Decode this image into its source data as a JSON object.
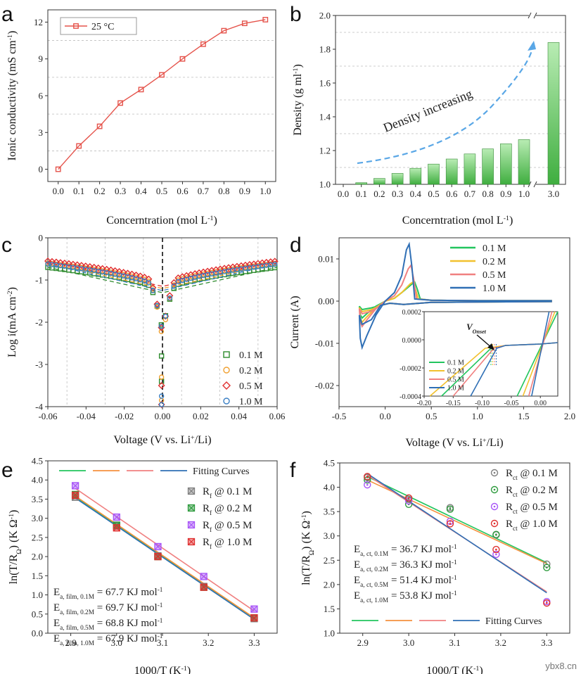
{
  "figure": {
    "panel_letters": [
      "a",
      "b",
      "c",
      "d",
      "e",
      "f"
    ],
    "watermark": "ybx8.cn"
  },
  "chart_data": [
    {
      "id": "a",
      "type": "line",
      "xlabel": "Concerntration (mol L",
      "xlabel_sup": "-1",
      "xlabel_close": ")",
      "ylabel": "Ionic conductivity (mS cm",
      "ylabel_sup": "-1",
      "ylabel_close": ")",
      "x": [
        0.0,
        0.1,
        0.2,
        0.3,
        0.4,
        0.5,
        0.6,
        0.7,
        0.8,
        0.9,
        1.0
      ],
      "series": [
        {
          "name": "25 °C",
          "values": [
            0.0,
            1.9,
            3.5,
            5.4,
            6.5,
            7.7,
            9.0,
            10.2,
            11.3,
            11.9,
            12.2
          ],
          "color": "#e5534b"
        }
      ],
      "xticks": [
        "0.0",
        "0.1",
        "0.2",
        "0.3",
        "0.4",
        "0.5",
        "0.6",
        "0.7",
        "0.8",
        "0.9",
        "1.0"
      ],
      "yticks": [
        "0",
        "3",
        "6",
        "9",
        "12"
      ],
      "xlim": [
        -0.05,
        1.05
      ],
      "ylim": [
        -1,
        13
      ],
      "legend": "top-left",
      "grid": true
    },
    {
      "id": "b",
      "type": "bar",
      "xlabel": "Concerntration (mol L",
      "xlabel_sup": "-1",
      "xlabel_close": ")",
      "ylabel": "Density (g ml",
      "ylabel_sup": "-1",
      "ylabel_close": ")",
      "categories": [
        "0.1",
        "0.2",
        "0.3",
        "0.4",
        "0.5",
        "0.6",
        "0.7",
        "0.8",
        "0.9",
        "1.0",
        "3.0"
      ],
      "values": [
        1.01,
        1.035,
        1.065,
        1.095,
        1.12,
        1.15,
        1.18,
        1.21,
        1.24,
        1.265,
        1.84
      ],
      "xticks": [
        "0.0",
        "0.1",
        "0.2",
        "0.3",
        "0.4",
        "0.5",
        "0.6",
        "0.7",
        "0.8",
        "0.9",
        "1.0",
        "3.0"
      ],
      "yticks": [
        "1.0",
        "1.2",
        "1.4",
        "1.6",
        "1.8",
        "2.0"
      ],
      "ylim": [
        1.0,
        2.0
      ],
      "annotation": "Density increasing",
      "bar_color_top": "#b9ecb4",
      "bar_color_bottom": "#3fae3f",
      "grid": true
    },
    {
      "id": "c",
      "type": "scatter",
      "xlabel": "Voltage (V vs. Li",
      "xlabel_sup": "+",
      "xlabel_close": "/Li)",
      "ylabel": "Log i(mA cm",
      "ylabel_sup": "-2",
      "ylabel_close": ")",
      "xticks": [
        "-0.06",
        "-0.04",
        "-0.02",
        "0.00",
        "0.02",
        "0.04",
        "0.06"
      ],
      "yticks": [
        "-4",
        "-3",
        "-2",
        "-1",
        "0"
      ],
      "xlim": [
        -0.06,
        0.06
      ],
      "ylim": [
        -4,
        0
      ],
      "series": [
        {
          "name": "0.1 M",
          "color": "#2e8b2e",
          "marker": "square",
          "a": -0.7,
          "b": -1.3,
          "k": -2.2
        },
        {
          "name": "0.2 M",
          "color": "#f0a030",
          "marker": "circle",
          "a": -0.6,
          "b": -1.2,
          "k": -2.4
        },
        {
          "name": "0.5 M",
          "color": "#e03030",
          "marker": "diamond",
          "a": -0.55,
          "b": -1.15,
          "k": -2.3
        },
        {
          "name": "1.0 M",
          "color": "#3a7fc4",
          "marker": "circle",
          "a": -0.62,
          "b": -1.25,
          "k": -2.25
        }
      ],
      "legend": "bottom-right",
      "grid": true
    },
    {
      "id": "d",
      "type": "line",
      "xlabel": "Voltage (V vs. Li",
      "xlabel_sup": "+",
      "xlabel_close": "/Li)",
      "ylabel": "Current (A)",
      "xticks": [
        "-0.5",
        "0.0",
        "0.5",
        "1.0",
        "1.5",
        "2.0"
      ],
      "yticks": [
        "-0.02",
        "-0.01",
        "0.00",
        "0.01"
      ],
      "xlim": [
        -0.5,
        2.0
      ],
      "ylim": [
        -0.025,
        0.015
      ],
      "series": [
        {
          "name": "0.1 M",
          "color": "#22c55e",
          "peak": 0.0045,
          "peakx": 0.32,
          "min": -0.004
        },
        {
          "name": "0.2 M",
          "color": "#f2c12e",
          "peak": 0.0045,
          "peakx": 0.3,
          "min": -0.005
        },
        {
          "name": "0.5 M",
          "color": "#f08080",
          "peak": 0.0085,
          "peakx": 0.28,
          "min": -0.006
        },
        {
          "name": "1.0 M",
          "color": "#2f6fb5",
          "peak": 0.0135,
          "peakx": 0.26,
          "min": -0.011
        }
      ],
      "inset": {
        "xticks": [
          "-0.20",
          "-0.15",
          "-0.10",
          "-0.05",
          "0.00"
        ],
        "yticks": [
          "0.0002",
          "0.0000",
          "-0.0002",
          "-0.0004"
        ],
        "xlim": [
          -0.2,
          0.03
        ],
        "ylim": [
          -0.0004,
          0.0002
        ],
        "label": "V",
        "label_sub": "Onset",
        "legend": [
          "0.1 M",
          "0.2 M",
          "0.5 M",
          "1.0 M"
        ]
      },
      "legend": "top-right"
    },
    {
      "id": "e",
      "type": "scatter",
      "xlabel": "1000/T (K",
      "xlabel_sup": "-1",
      "xlabel_close": ")",
      "ylabel": "ln(T/R",
      "ylabel_sub": "Ω",
      "ylabel_close": ") (K Ω",
      "ylabel_sup": "-1",
      "ylabel_end": ")",
      "x": [
        2.91,
        3.0,
        3.09,
        3.19,
        3.3
      ],
      "xticks": [
        "2.9",
        "3.0",
        "3.1",
        "3.2",
        "3.3"
      ],
      "yticks": [
        "0.0",
        "0.5",
        "1.0",
        "1.5",
        "2.0",
        "2.5",
        "3.0",
        "3.5",
        "4.0",
        "4.5"
      ],
      "xlim": [
        2.85,
        3.35
      ],
      "ylim": [
        0,
        4.5
      ],
      "series": [
        {
          "name": "R",
          "sub": "f",
          "suffix": " @ 0.1 M",
          "color": "#7f7f7f",
          "values": [
            3.55,
            2.8,
            2.02,
            1.22,
            0.38
          ],
          "fit": [
            3.56,
            0.39
          ],
          "fitcolor": "#22c55e"
        },
        {
          "name": "R",
          "sub": "f",
          "suffix": " @ 0.2 M",
          "color": "#2e9b3e",
          "values": [
            3.62,
            2.82,
            2.0,
            1.2,
            0.4
          ],
          "fit": [
            3.58,
            0.4
          ],
          "fitcolor": "#f5913e"
        },
        {
          "name": "R",
          "sub": "f",
          "suffix": " @ 0.5 M",
          "color": "#a855f7",
          "values": [
            3.85,
            3.03,
            2.26,
            1.48,
            0.63
          ],
          "fit": [
            3.78,
            0.58
          ],
          "fitcolor": "#f08080"
        },
        {
          "name": "R",
          "sub": "f",
          "suffix": " @ 1.0 M",
          "color": "#e03030",
          "values": [
            3.6,
            2.75,
            2.0,
            1.2,
            0.4
          ],
          "fit": [
            3.53,
            0.36
          ],
          "fitcolor": "#2f6fb5"
        }
      ],
      "fitting_label": "Fitting Curves",
      "energies": [
        {
          "text": "E",
          "sub": "a, film, 0.1M",
          "value": " = 67.7 KJ mol",
          "sup": "-1",
          "color": "#22c55e"
        },
        {
          "text": "E",
          "sub": "a, film, 0.2M",
          "value": " = 69.7 KJ mol",
          "sup": "-1",
          "color": "#f5913e"
        },
        {
          "text": "E",
          "sub": "a, film, 0.5M",
          "value": " = 68.8 KJ mol",
          "sup": "-1",
          "color": "#f08080"
        },
        {
          "text": "E",
          "sub": "a, film, 1.0M",
          "value": " = 67.9 KJ mol",
          "sup": "-1",
          "color": "#2f6fb5"
        }
      ]
    },
    {
      "id": "f",
      "type": "scatter",
      "xlabel": "1000/T (K",
      "xlabel_sup": "-1",
      "xlabel_close": ")",
      "ylabel": "ln(T/R",
      "ylabel_sub": "Ω",
      "ylabel_close": ") (K Ω",
      "ylabel_sup": "-1",
      "ylabel_end": ")",
      "x": [
        2.91,
        3.0,
        3.09,
        3.19,
        3.3
      ],
      "xticks": [
        "2.9",
        "3.0",
        "3.1",
        "3.2",
        "3.3"
      ],
      "yticks": [
        "1.0",
        "1.5",
        "2.0",
        "2.5",
        "3.0",
        "3.5",
        "4.0",
        "4.5"
      ],
      "xlim": [
        2.85,
        3.35
      ],
      "ylim": [
        1.0,
        4.5
      ],
      "series": [
        {
          "name": "R",
          "sub": "ct",
          "suffix": " @ 0.1 M",
          "color": "#7f7f7f",
          "values": [
            4.2,
            3.75,
            3.58,
            3.02,
            2.42
          ],
          "fit": [
            4.22,
            2.45
          ],
          "fitcolor": "#22c55e"
        },
        {
          "name": "R",
          "sub": "ct",
          "suffix": " @ 0.2 M",
          "color": "#2e9b3e",
          "values": [
            4.15,
            3.65,
            3.55,
            3.03,
            2.35
          ],
          "fit": [
            4.15,
            2.43
          ],
          "fitcolor": "#f5913e"
        },
        {
          "name": "R",
          "sub": "ct",
          "suffix": " @ 0.5 M",
          "color": "#a855f7",
          "values": [
            4.05,
            3.72,
            3.3,
            2.62,
            1.65
          ],
          "fit": [
            4.25,
            1.85
          ],
          "fitcolor": "#f08080"
        },
        {
          "name": "R",
          "sub": "ct",
          "suffix": " @ 1.0 M",
          "color": "#e03030",
          "values": [
            4.22,
            3.78,
            3.25,
            2.72,
            1.62
          ],
          "fit": [
            4.28,
            1.83
          ],
          "fitcolor": "#2f6fb5"
        }
      ],
      "fitting_label": "Fitting Curves",
      "energies": [
        {
          "text": "E",
          "sub": "a, ct, 0.1M",
          "value": " = 36.7 KJ mol",
          "sup": "-1",
          "color": "#22c55e"
        },
        {
          "text": "E",
          "sub": "a, ct, 0.2M",
          "value": " = 36.3 KJ mol",
          "sup": "-1",
          "color": "#f5913e"
        },
        {
          "text": "E",
          "sub": "a, ct, 0.5M",
          "value": " = 51.4 KJ mol",
          "sup": "-1",
          "color": "#e03030"
        },
        {
          "text": "E",
          "sub": "a, ct, 1.0M",
          "value": " = 53.8 KJ mol",
          "sup": "-1",
          "color": "#2f6fb5"
        }
      ]
    }
  ]
}
